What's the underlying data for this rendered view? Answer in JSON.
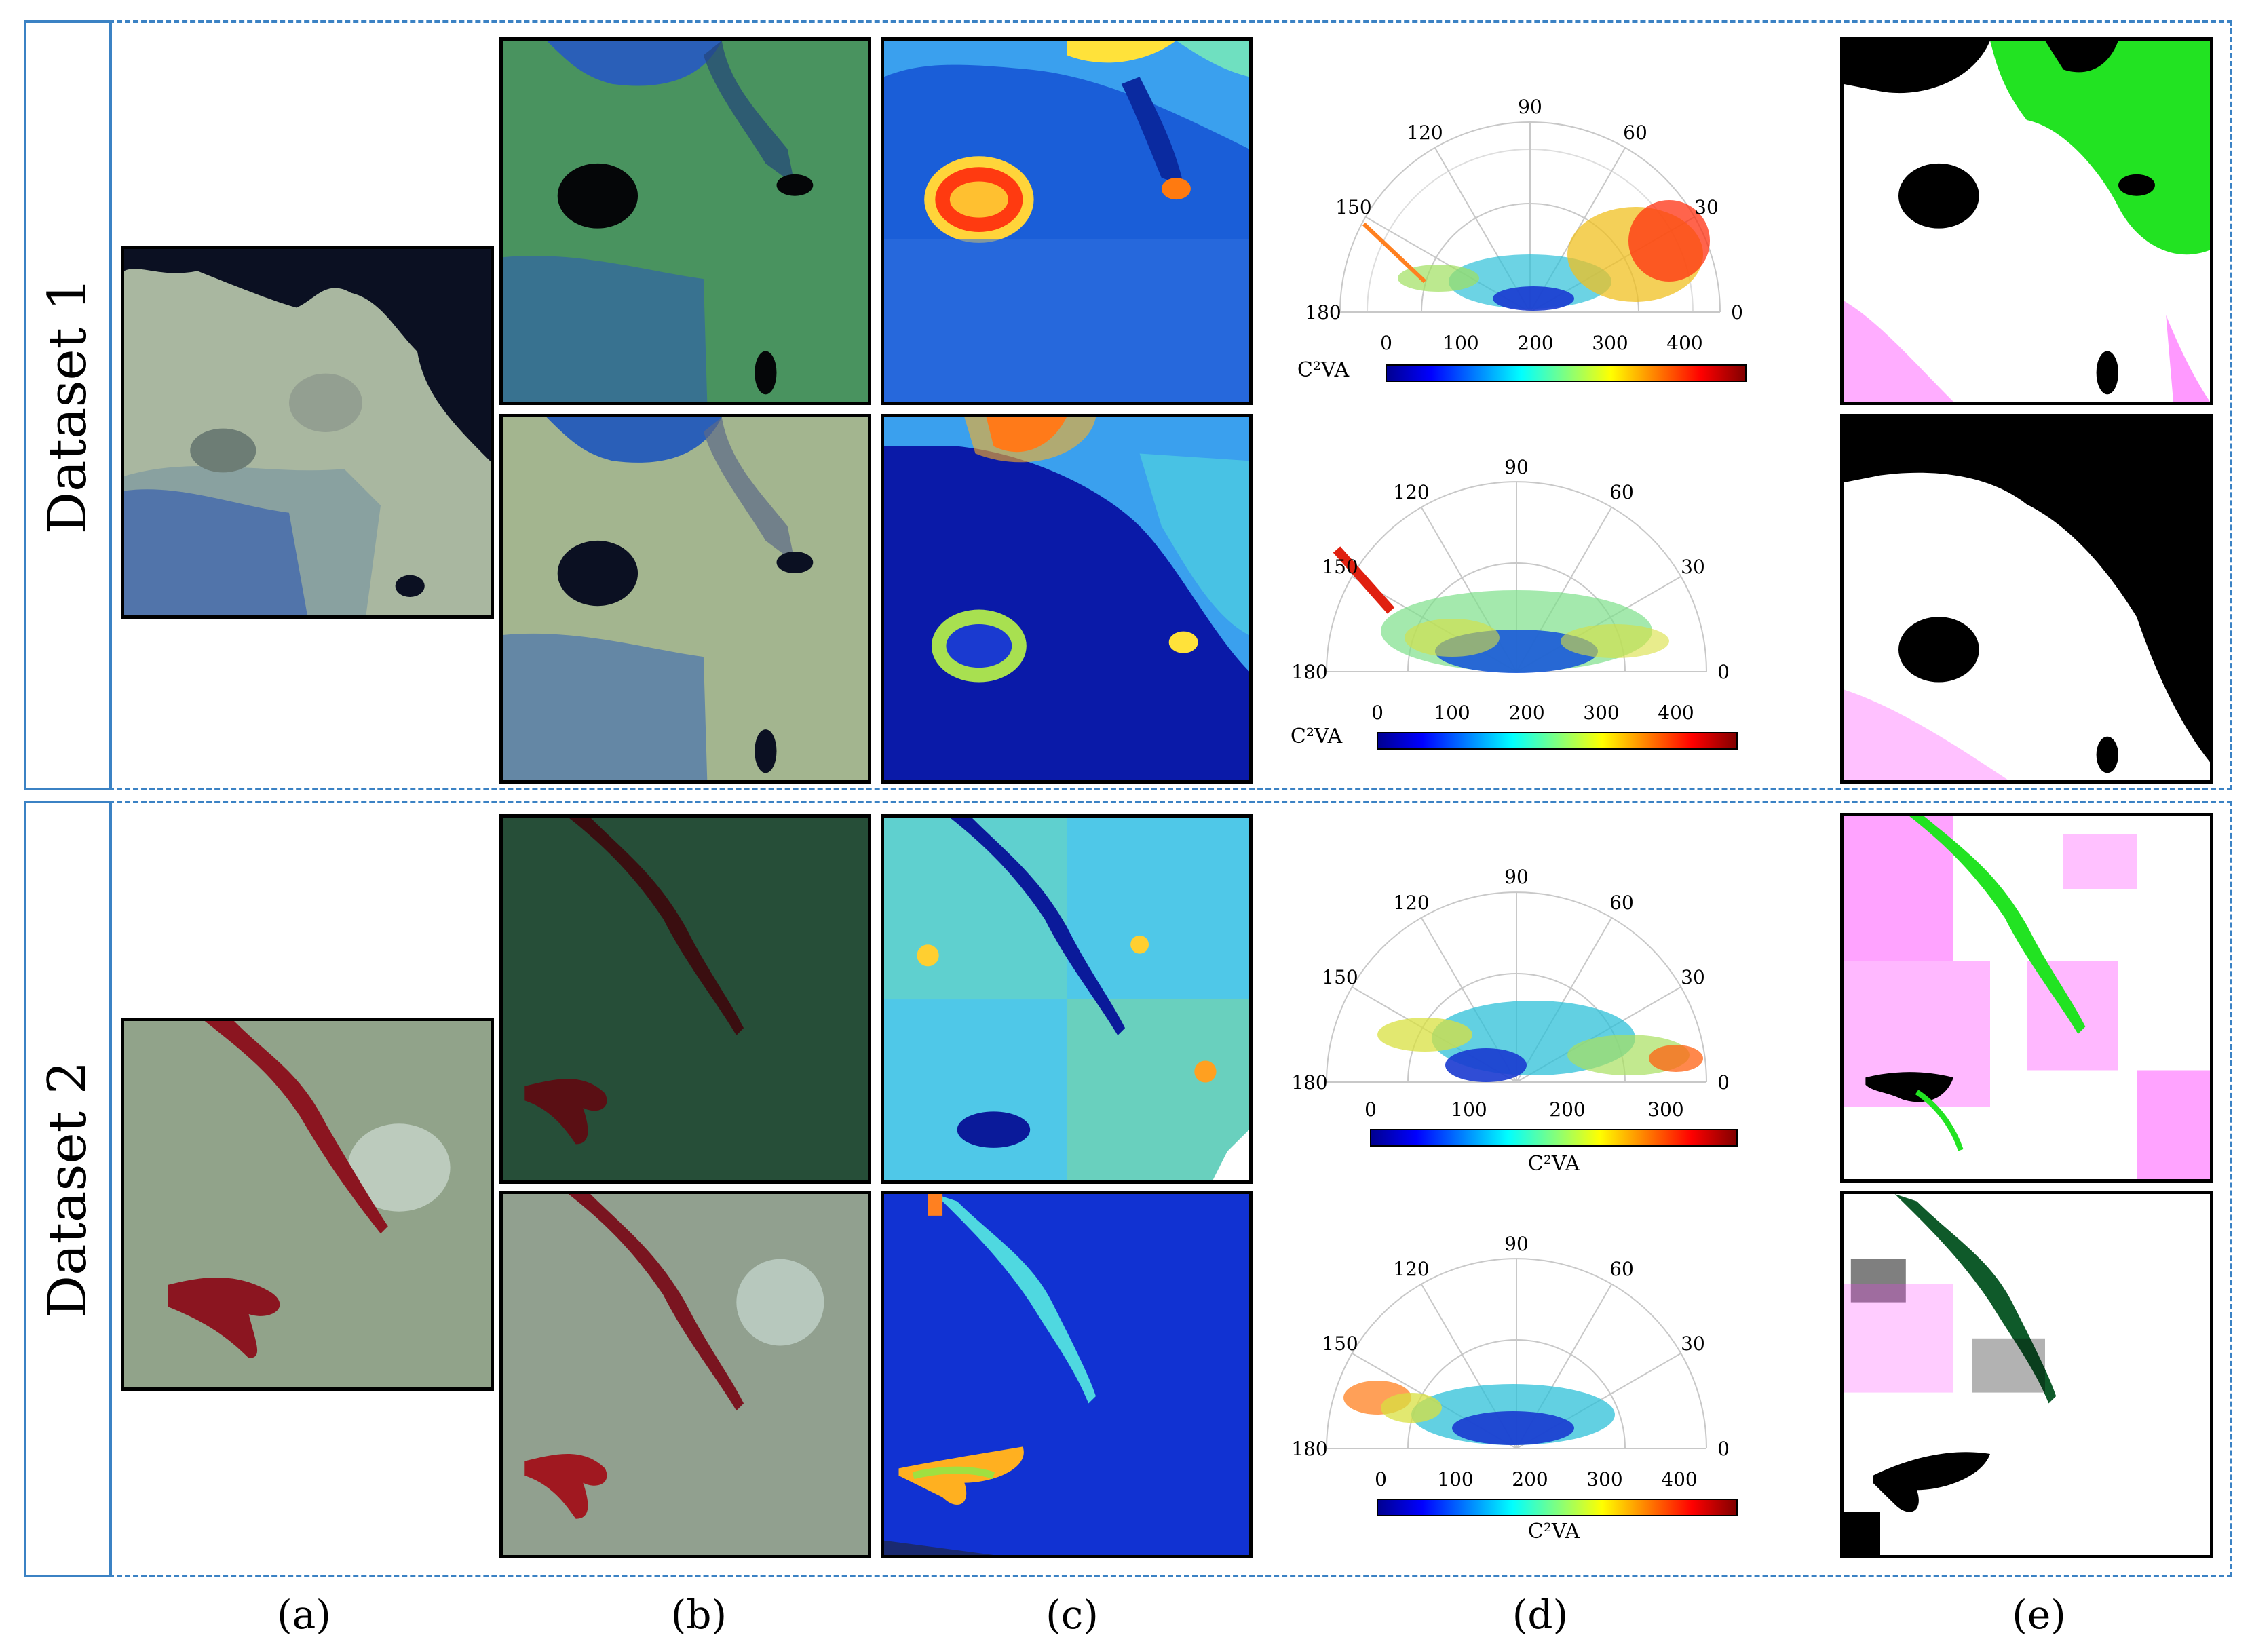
{
  "datasets": [
    {
      "label": "Dataset 1"
    },
    {
      "label": "Dataset 2"
    }
  ],
  "columns": [
    "(a)",
    "(b)",
    "(c)",
    "(d)",
    "(e)"
  ],
  "polar_plots": [
    {
      "angles": [
        "90",
        "120",
        "60",
        "150",
        "30",
        "180",
        "0"
      ],
      "colorbar_ticks": [
        "0",
        "100",
        "200",
        "300",
        "400"
      ],
      "colorbar_label": "C²VA"
    },
    {
      "angles": [
        "90",
        "120",
        "60",
        "150",
        "30",
        "180",
        "0"
      ],
      "colorbar_ticks": [
        "0",
        "100",
        "200",
        "300",
        "400"
      ],
      "colorbar_label": "C²VA"
    },
    {
      "angles": [
        "90",
        "120",
        "60",
        "150",
        "30",
        "180",
        "0"
      ],
      "colorbar_ticks": [
        "0",
        "100",
        "200",
        "300"
      ],
      "colorbar_label": "C²VA"
    },
    {
      "angles": [
        "90",
        "120",
        "60",
        "150",
        "30",
        "180",
        "0"
      ],
      "colorbar_ticks": [
        "0",
        "100",
        "200",
        "300",
        "400"
      ],
      "colorbar_label": "C²VA"
    }
  ],
  "colors": {
    "frame": "#3b82c4",
    "change_green": "#22e322",
    "change_magenta": "#ff33ff",
    "water_dark": "#0a0a1e",
    "dam_red": "#8b1520"
  }
}
